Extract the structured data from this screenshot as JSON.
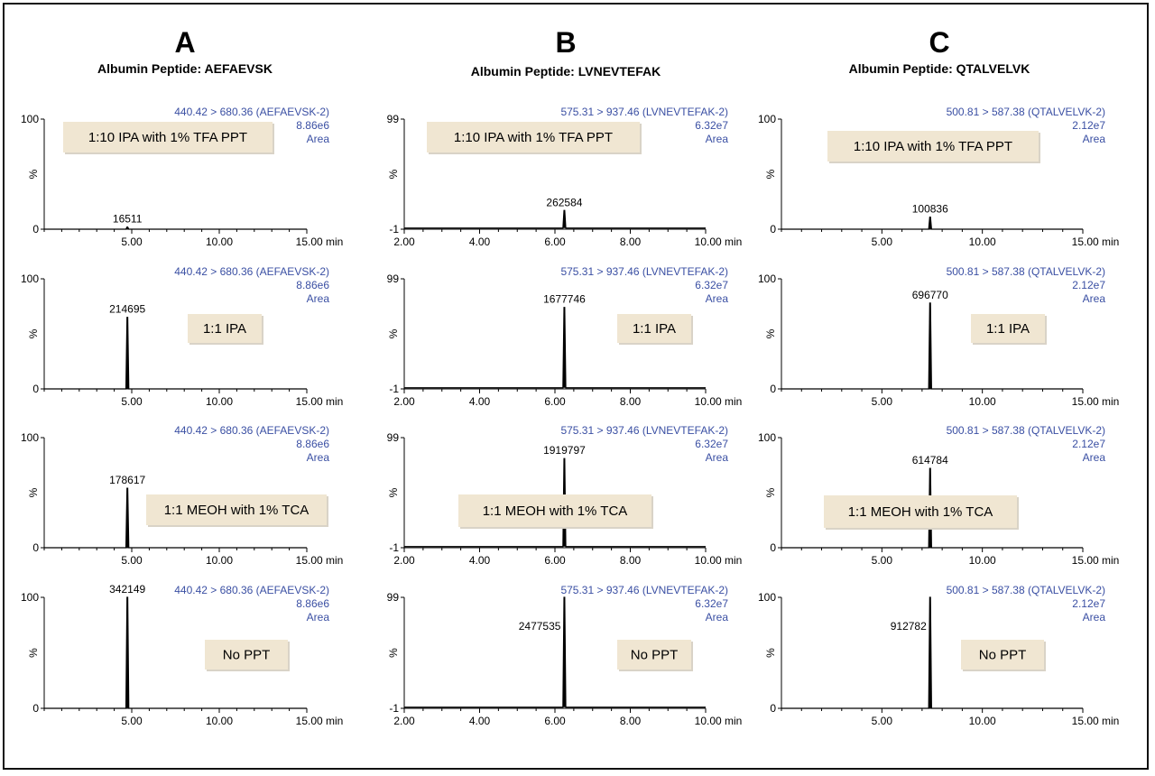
{
  "columns": [
    {
      "letter": "A",
      "subtitle": "Albumin Peptide: AEFAEVSK"
    },
    {
      "letter": "B",
      "subtitle": "Albumin Peptide: LVNEVTEFAK"
    },
    {
      "letter": "C",
      "subtitle": "Albumin Peptide: QTALVELVK"
    }
  ],
  "colors": {
    "annotation_text": "#3a4fa3",
    "box_fill": "#f0e6d2",
    "trace": "#000000"
  },
  "chart_data": [
    {
      "type": "line",
      "column": "A",
      "treatment": "1:10 IPA with 1% TFA PPT",
      "transition": "440.42 > 680.36 (AEFAEVSK-2)",
      "scale": "8.86e6",
      "mode": "Area",
      "ylabel": "%",
      "y_top_label": "100",
      "y_bottom_label": "0",
      "x_tick_labels": [
        "5.00",
        "10.00",
        "15.00 min"
      ],
      "x_ticks": [
        5,
        10,
        15
      ],
      "xlim": [
        0,
        15
      ],
      "ylim": [
        0,
        100
      ],
      "peak": {
        "rt": 4.75,
        "height": 2,
        "label": "16511"
      }
    },
    {
      "type": "line",
      "column": "A",
      "treatment": "1:1 IPA",
      "transition": "440.42 > 680.36 (AEFAEVSK-2)",
      "scale": "8.86e6",
      "mode": "Area",
      "ylabel": "%",
      "y_top_label": "100",
      "y_bottom_label": "0",
      "x_tick_labels": [
        "5.00",
        "10.00",
        "15.00 min"
      ],
      "x_ticks": [
        5,
        10,
        15
      ],
      "xlim": [
        0,
        15
      ],
      "ylim": [
        0,
        100
      ],
      "peak": {
        "rt": 4.75,
        "height": 65,
        "label": "214695"
      }
    },
    {
      "type": "line",
      "column": "A",
      "treatment": "1:1 MEOH with 1% TCA",
      "transition": "440.42 > 680.36 (AEFAEVSK-2)",
      "scale": "8.86e6",
      "mode": "Area",
      "ylabel": "%",
      "y_top_label": "100",
      "y_bottom_label": "0",
      "x_tick_labels": [
        "5.00",
        "10.00",
        "15.00 min"
      ],
      "x_ticks": [
        5,
        10,
        15
      ],
      "xlim": [
        0,
        15
      ],
      "ylim": [
        0,
        100
      ],
      "peak": {
        "rt": 4.75,
        "height": 54,
        "label": "178617"
      }
    },
    {
      "type": "line",
      "column": "A",
      "treatment": "No PPT",
      "transition": "440.42 > 680.36 (AEFAEVSK-2)",
      "scale": "8.86e6",
      "mode": "Area",
      "ylabel": "%",
      "y_top_label": "100",
      "y_bottom_label": "0",
      "x_tick_labels": [
        "5.00",
        "10.00",
        "15.00 min"
      ],
      "x_ticks": [
        5,
        10,
        15
      ],
      "xlim": [
        0,
        15
      ],
      "ylim": [
        0,
        100
      ],
      "peak": {
        "rt": 4.75,
        "height": 100,
        "label": "342149"
      }
    },
    {
      "type": "line",
      "column": "B",
      "treatment": "1:10 IPA with 1% TFA PPT",
      "transition": "575.31 > 937.46 (LVNEVTEFAK-2)",
      "scale": "6.32e7",
      "mode": "Area",
      "ylabel": "%",
      "y_top_label": "99",
      "y_bottom_label": "-1",
      "x_tick_labels": [
        "2.00",
        "4.00",
        "6.00",
        "8.00",
        "10.00 min"
      ],
      "x_ticks": [
        2,
        4,
        6,
        8,
        10
      ],
      "xlim": [
        2,
        10
      ],
      "ylim": [
        -1,
        99
      ],
      "peak": {
        "rt": 6.25,
        "height": 16,
        "label": "262584"
      }
    },
    {
      "type": "line",
      "column": "B",
      "treatment": "1:1 IPA",
      "transition": "575.31 > 937.46 (LVNEVTEFAK-2)",
      "scale": "6.32e7",
      "mode": "Area",
      "ylabel": "%",
      "y_top_label": "99",
      "y_bottom_label": "-1",
      "x_tick_labels": [
        "2.00",
        "4.00",
        "6.00",
        "8.00",
        "10.00 min"
      ],
      "x_ticks": [
        2,
        4,
        6,
        8,
        10
      ],
      "xlim": [
        2,
        10
      ],
      "ylim": [
        -1,
        99
      ],
      "peak": {
        "rt": 6.25,
        "height": 73,
        "label": "1677746"
      }
    },
    {
      "type": "line",
      "column": "B",
      "treatment": "1:1 MEOH with 1% TCA",
      "transition": "575.31 > 937.46 (LVNEVTEFAK-2)",
      "scale": "6.32e7",
      "mode": "Area",
      "ylabel": "%",
      "y_top_label": "99",
      "y_bottom_label": "-1",
      "x_tick_labels": [
        "2.00",
        "4.00",
        "6.00",
        "8.00",
        "10.00 min"
      ],
      "x_ticks": [
        2,
        4,
        6,
        8,
        10
      ],
      "xlim": [
        2,
        10
      ],
      "ylim": [
        -1,
        99
      ],
      "peak": {
        "rt": 6.25,
        "height": 80,
        "label": "1919797"
      }
    },
    {
      "type": "line",
      "column": "B",
      "treatment": "No PPT",
      "transition": "575.31 > 937.46 (LVNEVTEFAK-2)",
      "scale": "6.32e7",
      "mode": "Area",
      "ylabel": "%",
      "y_top_label": "99",
      "y_bottom_label": "-1",
      "x_tick_labels": [
        "2.00",
        "4.00",
        "6.00",
        "8.00",
        "10.00 min"
      ],
      "x_ticks": [
        2,
        4,
        6,
        8,
        10
      ],
      "xlim": [
        2,
        10
      ],
      "ylim": [
        -1,
        99
      ],
      "peak": {
        "rt": 6.25,
        "height": 99,
        "label": "2477535"
      }
    },
    {
      "type": "line",
      "column": "C",
      "treatment": "1:10 IPA with 1% TFA PPT",
      "transition": "500.81 > 587.38 (QTALVELVK-2)",
      "scale": "2.12e7",
      "mode": "Area",
      "ylabel": "%",
      "y_top_label": "100",
      "y_bottom_label": "0",
      "x_tick_labels": [
        "5.00",
        "10.00",
        "15.00 min"
      ],
      "x_ticks": [
        5,
        10,
        15
      ],
      "xlim": [
        0,
        15
      ],
      "ylim": [
        0,
        100
      ],
      "peak": {
        "rt": 7.4,
        "height": 11,
        "label": "100836"
      }
    },
    {
      "type": "line",
      "column": "C",
      "treatment": "1:1 IPA",
      "transition": "500.81 > 587.38 (QTALVELVK-2)",
      "scale": "2.12e7",
      "mode": "Area",
      "ylabel": "%",
      "y_top_label": "100",
      "y_bottom_label": "0",
      "x_tick_labels": [
        "5.00",
        "10.00",
        "15.00 min"
      ],
      "x_ticks": [
        5,
        10,
        15
      ],
      "xlim": [
        0,
        15
      ],
      "ylim": [
        0,
        100
      ],
      "peak": {
        "rt": 7.4,
        "height": 78,
        "label": "696770"
      }
    },
    {
      "type": "line",
      "column": "C",
      "treatment": "1:1 MEOH with 1% TCA",
      "transition": "500.81 > 587.38 (QTALVELVK-2)",
      "scale": "2.12e7",
      "mode": "Area",
      "ylabel": "%",
      "y_top_label": "100",
      "y_bottom_label": "0",
      "x_tick_labels": [
        "5.00",
        "10.00",
        "15.00 min"
      ],
      "x_ticks": [
        5,
        10,
        15
      ],
      "xlim": [
        0,
        15
      ],
      "ylim": [
        0,
        100
      ],
      "peak": {
        "rt": 7.4,
        "height": 72,
        "label": "614784"
      }
    },
    {
      "type": "line",
      "column": "C",
      "treatment": "No PPT",
      "transition": "500.81 > 587.38 (QTALVELVK-2)",
      "scale": "2.12e7",
      "mode": "Area",
      "ylabel": "%",
      "y_top_label": "100",
      "y_bottom_label": "0",
      "x_tick_labels": [
        "5.00",
        "10.00",
        "15.00 min"
      ],
      "x_ticks": [
        5,
        10,
        15
      ],
      "xlim": [
        0,
        15
      ],
      "ylim": [
        0,
        100
      ],
      "peak": {
        "rt": 7.4,
        "height": 100,
        "label": "912782"
      }
    }
  ]
}
